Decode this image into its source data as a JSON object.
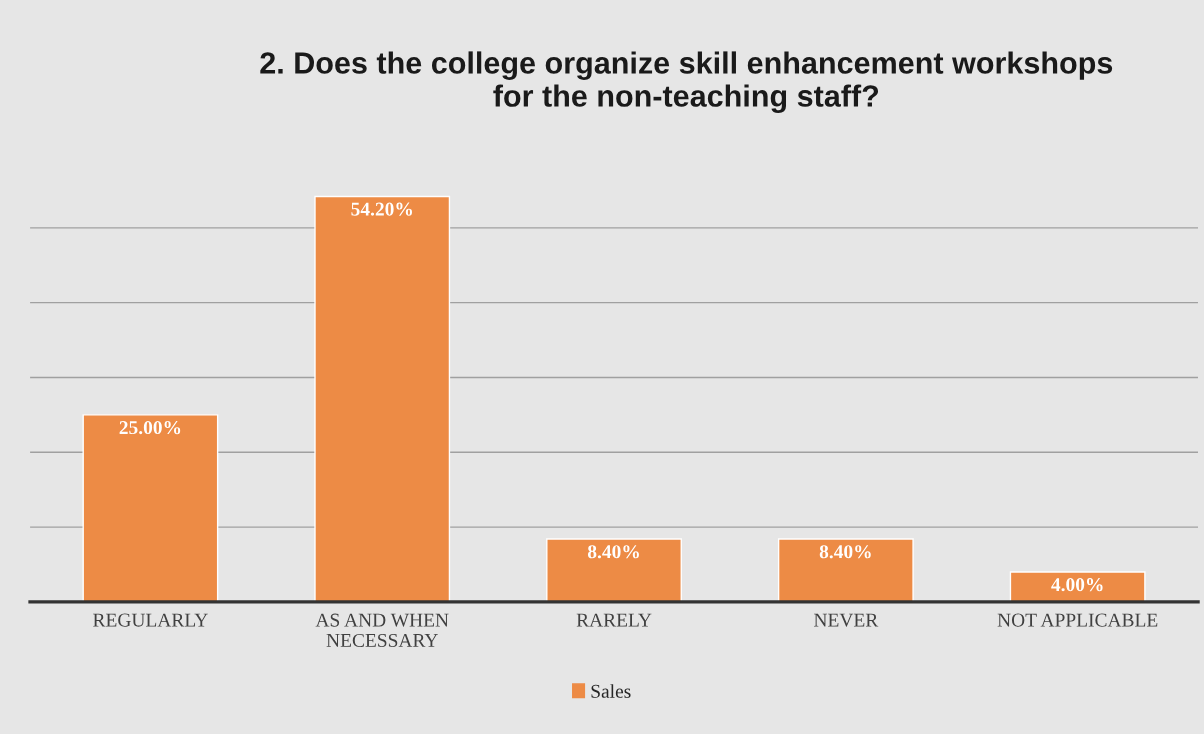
{
  "chart_data": {
    "type": "bar",
    "title": "2. Does the college organize skill enhancement workshops\nfor the non-teaching staff?",
    "categories": [
      "REGULARLY",
      "AS AND WHEN\nNECESSARY",
      "RARELY",
      "NEVER",
      "NOT APPLICABLE"
    ],
    "series": [
      {
        "name": "Sales",
        "color": "#ed8b45",
        "values": [
          25.0,
          54.2,
          8.4,
          8.4,
          4.0
        ],
        "value_labels": [
          "25.00%",
          "54.20%",
          "8.40%",
          "8.40%",
          "4.00%"
        ]
      }
    ],
    "tick_labels": "x",
    "grid": "y",
    "legend": "bottom"
  }
}
